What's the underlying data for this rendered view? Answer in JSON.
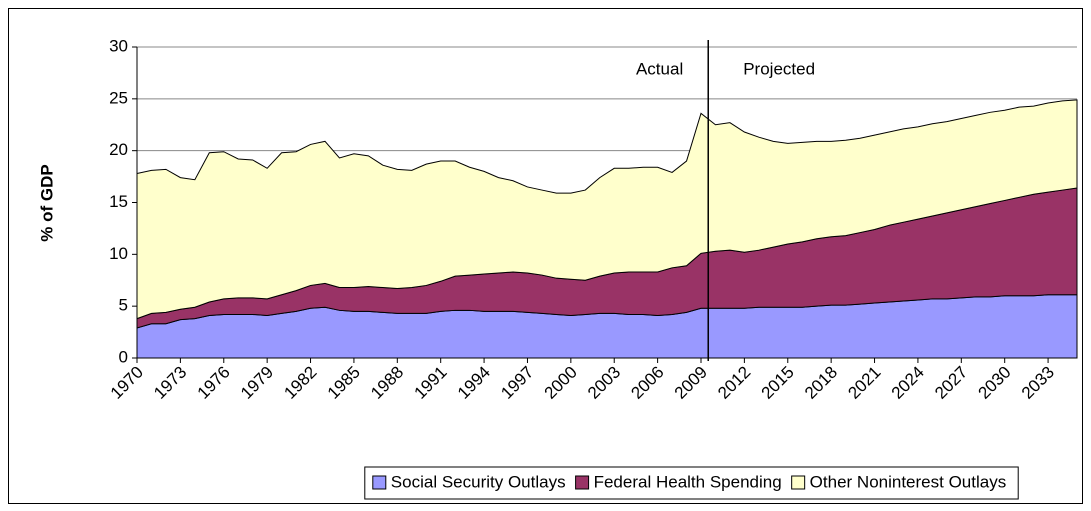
{
  "chart_data": {
    "type": "stacked-area",
    "y_label": "% of GDP",
    "annotations": [
      "Actual",
      "Projected"
    ],
    "x": [
      1970,
      1971,
      1972,
      1973,
      1974,
      1975,
      1976,
      1977,
      1978,
      1979,
      1980,
      1981,
      1982,
      1983,
      1984,
      1985,
      1986,
      1987,
      1988,
      1989,
      1990,
      1991,
      1992,
      1993,
      1994,
      1995,
      1996,
      1997,
      1998,
      1999,
      2000,
      2001,
      2002,
      2003,
      2004,
      2005,
      2006,
      2007,
      2008,
      2009,
      2010,
      2011,
      2012,
      2013,
      2014,
      2015,
      2016,
      2017,
      2018,
      2019,
      2020,
      2021,
      2022,
      2023,
      2024,
      2025,
      2026,
      2027,
      2028,
      2029,
      2030,
      2031,
      2032,
      2033,
      2034,
      2035
    ],
    "xlim": [
      1970,
      2035
    ],
    "xticks": [
      1970,
      1973,
      1976,
      1979,
      1982,
      1985,
      1988,
      1991,
      1994,
      1997,
      2000,
      2003,
      2006,
      2009,
      2012,
      2015,
      2018,
      2021,
      2024,
      2027,
      2030,
      2033
    ],
    "ylim": [
      0,
      30
    ],
    "yticks": [
      0,
      5,
      10,
      15,
      20,
      25,
      30
    ],
    "grid": true,
    "legend": "bottom",
    "series": [
      {
        "name": "Social Security Outlays",
        "color": "#9999ff",
        "values": [
          2.9,
          3.3,
          3.3,
          3.7,
          3.8,
          4.1,
          4.2,
          4.2,
          4.2,
          4.1,
          4.3,
          4.5,
          4.8,
          4.9,
          4.6,
          4.5,
          4.5,
          4.4,
          4.3,
          4.3,
          4.3,
          4.5,
          4.6,
          4.6,
          4.5,
          4.5,
          4.5,
          4.4,
          4.3,
          4.2,
          4.1,
          4.2,
          4.3,
          4.3,
          4.2,
          4.2,
          4.1,
          4.2,
          4.4,
          4.8,
          4.8,
          4.8,
          4.8,
          4.9,
          4.9,
          4.9,
          4.9,
          5.0,
          5.1,
          5.1,
          5.2,
          5.3,
          5.4,
          5.5,
          5.6,
          5.7,
          5.7,
          5.8,
          5.9,
          5.9,
          6.0,
          6.0,
          6.0,
          6.1,
          6.1,
          6.1
        ]
      },
      {
        "name": "Federal Health Spending",
        "color": "#993366",
        "values": [
          0.9,
          1.0,
          1.1,
          1.0,
          1.1,
          1.3,
          1.5,
          1.6,
          1.6,
          1.6,
          1.8,
          2.0,
          2.2,
          2.3,
          2.2,
          2.3,
          2.4,
          2.4,
          2.4,
          2.5,
          2.7,
          2.9,
          3.3,
          3.4,
          3.6,
          3.7,
          3.8,
          3.8,
          3.7,
          3.5,
          3.5,
          3.3,
          3.6,
          3.9,
          4.1,
          4.1,
          4.2,
          4.5,
          4.5,
          5.3,
          5.5,
          5.6,
          5.4,
          5.5,
          5.8,
          6.1,
          6.3,
          6.5,
          6.6,
          6.7,
          6.9,
          7.1,
          7.4,
          7.6,
          7.8,
          8.0,
          8.3,
          8.5,
          8.7,
          9.0,
          9.2,
          9.5,
          9.8,
          9.9,
          10.1,
          10.3
        ]
      },
      {
        "name": "Other Noninterest Outlays",
        "color": "#ffffcc",
        "values": [
          14.0,
          13.8,
          13.8,
          12.7,
          12.3,
          14.4,
          14.2,
          13.4,
          13.3,
          12.6,
          13.7,
          13.4,
          13.6,
          13.7,
          12.5,
          12.9,
          12.6,
          11.8,
          11.5,
          11.3,
          11.7,
          11.6,
          11.1,
          10.4,
          9.9,
          9.2,
          8.8,
          8.3,
          8.2,
          8.2,
          8.3,
          8.7,
          9.5,
          10.1,
          10.0,
          10.1,
          10.1,
          9.2,
          10.1,
          13.5,
          12.2,
          12.3,
          11.6,
          10.9,
          10.2,
          9.7,
          9.6,
          9.4,
          9.2,
          9.2,
          9.1,
          9.1,
          9.0,
          9.0,
          8.9,
          8.9,
          8.8,
          8.8,
          8.8,
          8.8,
          8.7,
          8.7,
          8.5,
          8.6,
          8.6,
          8.5
        ]
      }
    ]
  }
}
